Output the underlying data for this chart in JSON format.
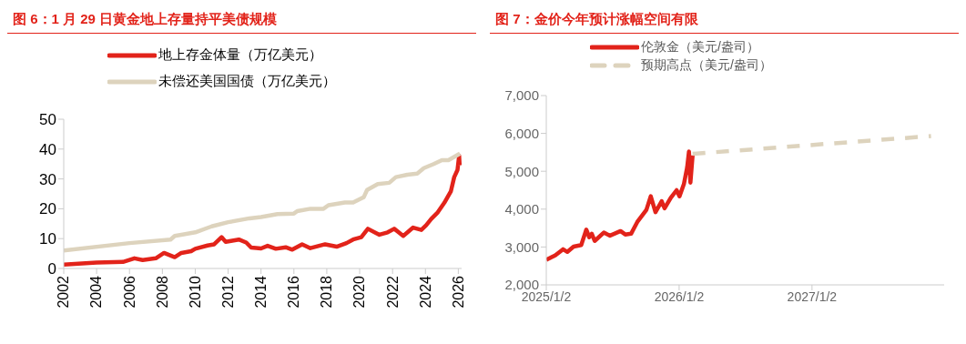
{
  "chart_data": [
    {
      "type": "line",
      "title": "图 6：1 月 29 日黄金地上存量持平美债规模",
      "xlim": [
        2002,
        2026.2
      ],
      "xticks": [
        2002,
        2004,
        2006,
        2008,
        2010,
        2012,
        2014,
        2016,
        2018,
        2020,
        2022,
        2024,
        2026
      ],
      "ylim": [
        0,
        50
      ],
      "yticks": [
        0,
        10,
        20,
        30,
        40,
        50
      ],
      "grid": false,
      "legend": "top",
      "series": [
        {
          "name": "地上存金体量（万亿美元）",
          "color": "#e2231a",
          "x": [
            2002,
            2004,
            2005.6,
            2006.3,
            2006.8,
            2007.6,
            2008.1,
            2008.75,
            2009.15,
            2009.75,
            2010,
            2010.75,
            2011.15,
            2011.6,
            2011.85,
            2012.25,
            2012.65,
            2013.1,
            2013.4,
            2014,
            2014.4,
            2014.9,
            2015.5,
            2015.9,
            2016.5,
            2017,
            2017.9,
            2018.6,
            2019.2,
            2019.6,
            2020.1,
            2020.5,
            2021.2,
            2021.7,
            2022.1,
            2022.65,
            2023.25,
            2023.75,
            2024.05,
            2024.35,
            2024.75,
            2025.15,
            2025.55,
            2025.75,
            2025.95,
            2026.05,
            2026.08
          ],
          "values": [
            1.3,
            2.0,
            2.2,
            3.4,
            2.8,
            3.4,
            5.2,
            3.8,
            5.2,
            5.8,
            6.6,
            7.7,
            8.1,
            10.5,
            8.9,
            9.3,
            9.7,
            8.7,
            7.0,
            6.7,
            7.6,
            6.6,
            7.1,
            6.3,
            8.1,
            6.8,
            8.1,
            7.3,
            8.5,
            9.7,
            10.5,
            13.3,
            11.3,
            12.1,
            13.3,
            10.9,
            13.7,
            12.9,
            14.5,
            16.6,
            18.8,
            22.0,
            25.9,
            30.6,
            33.0,
            37.8,
            34.6
          ]
        },
        {
          "name": "未偿还美国国债（万亿美元）",
          "color": "#ddd3bd",
          "x": [
            2002,
            2006,
            2008.5,
            2008.75,
            2010,
            2011,
            2012,
            2013.3,
            2014,
            2015,
            2016,
            2016.2,
            2017,
            2017.8,
            2018.1,
            2019.1,
            2019.6,
            2020.1,
            2020.25,
            2020.45,
            2021.1,
            2021.8,
            2022.2,
            2022.9,
            2023.5,
            2023.9,
            2024.5,
            2025,
            2025.4,
            2026.1
          ],
          "values": [
            6.0,
            8.5,
            9.7,
            10.9,
            12.1,
            14.1,
            15.5,
            16.8,
            17.2,
            18.2,
            18.4,
            19.2,
            20.0,
            20.0,
            21.2,
            22.1,
            22.1,
            23.5,
            23.9,
            26.3,
            28.3,
            28.7,
            30.6,
            31.4,
            31.8,
            33.6,
            35.0,
            36.3,
            36.3,
            38.5
          ]
        }
      ]
    },
    {
      "type": "line",
      "title": "图 7：金价今年预计涨幅空间有限",
      "xlim": [
        "2025-01-02",
        "2027-12-31"
      ],
      "xticks": [
        {
          "value": "2025-01-02",
          "label": "2025/1/2"
        },
        {
          "value": "2026-01-02",
          "label": "2026/1/2"
        },
        {
          "value": "2027-01-02",
          "label": "2027/1/2"
        }
      ],
      "ylim": [
        2000,
        7000
      ],
      "yticks": [
        {
          "value": 2000,
          "label": "2,000"
        },
        {
          "value": 3000,
          "label": "3,000"
        },
        {
          "value": 4000,
          "label": "4,000"
        },
        {
          "value": 5000,
          "label": "5,000"
        },
        {
          "value": 6000,
          "label": "6,000"
        },
        {
          "value": 7000,
          "label": "7,000"
        }
      ],
      "grid": false,
      "legend": "top",
      "series": [
        {
          "name": "伦敦金（美元/盎司）",
          "color": "#e2231a",
          "x": [
            "2025-01-02",
            "2025-01-27",
            "2025-02-17",
            "2025-03-01",
            "2025-03-18",
            "2025-04-08",
            "2025-04-22",
            "2025-04-30",
            "2025-05-07",
            "2025-05-15",
            "2025-06-09",
            "2025-06-26",
            "2025-07-25",
            "2025-08-07",
            "2025-08-23",
            "2025-09-09",
            "2025-10-04",
            "2025-10-16",
            "2025-10-29",
            "2025-11-15",
            "2025-11-23",
            "2025-12-10",
            "2025-12-26",
            "2026-01-03",
            "2026-01-15",
            "2026-01-24",
            "2026-01-29",
            "2026-02-02",
            "2026-02-08"
          ],
          "values": [
            2660,
            2780,
            2940,
            2870,
            3010,
            3050,
            3460,
            3260,
            3350,
            3160,
            3380,
            3300,
            3420,
            3330,
            3350,
            3660,
            3980,
            4340,
            3920,
            4210,
            4020,
            4300,
            4500,
            4340,
            4660,
            5100,
            5520,
            4700,
            5420
          ]
        },
        {
          "name": "预期高点（美元/盎司）",
          "color": "#ddd3bd",
          "line_style": "dashed",
          "x": [
            "2026-02-08",
            "2027-11-25"
          ],
          "values": [
            5460,
            5930
          ]
        }
      ]
    }
  ]
}
